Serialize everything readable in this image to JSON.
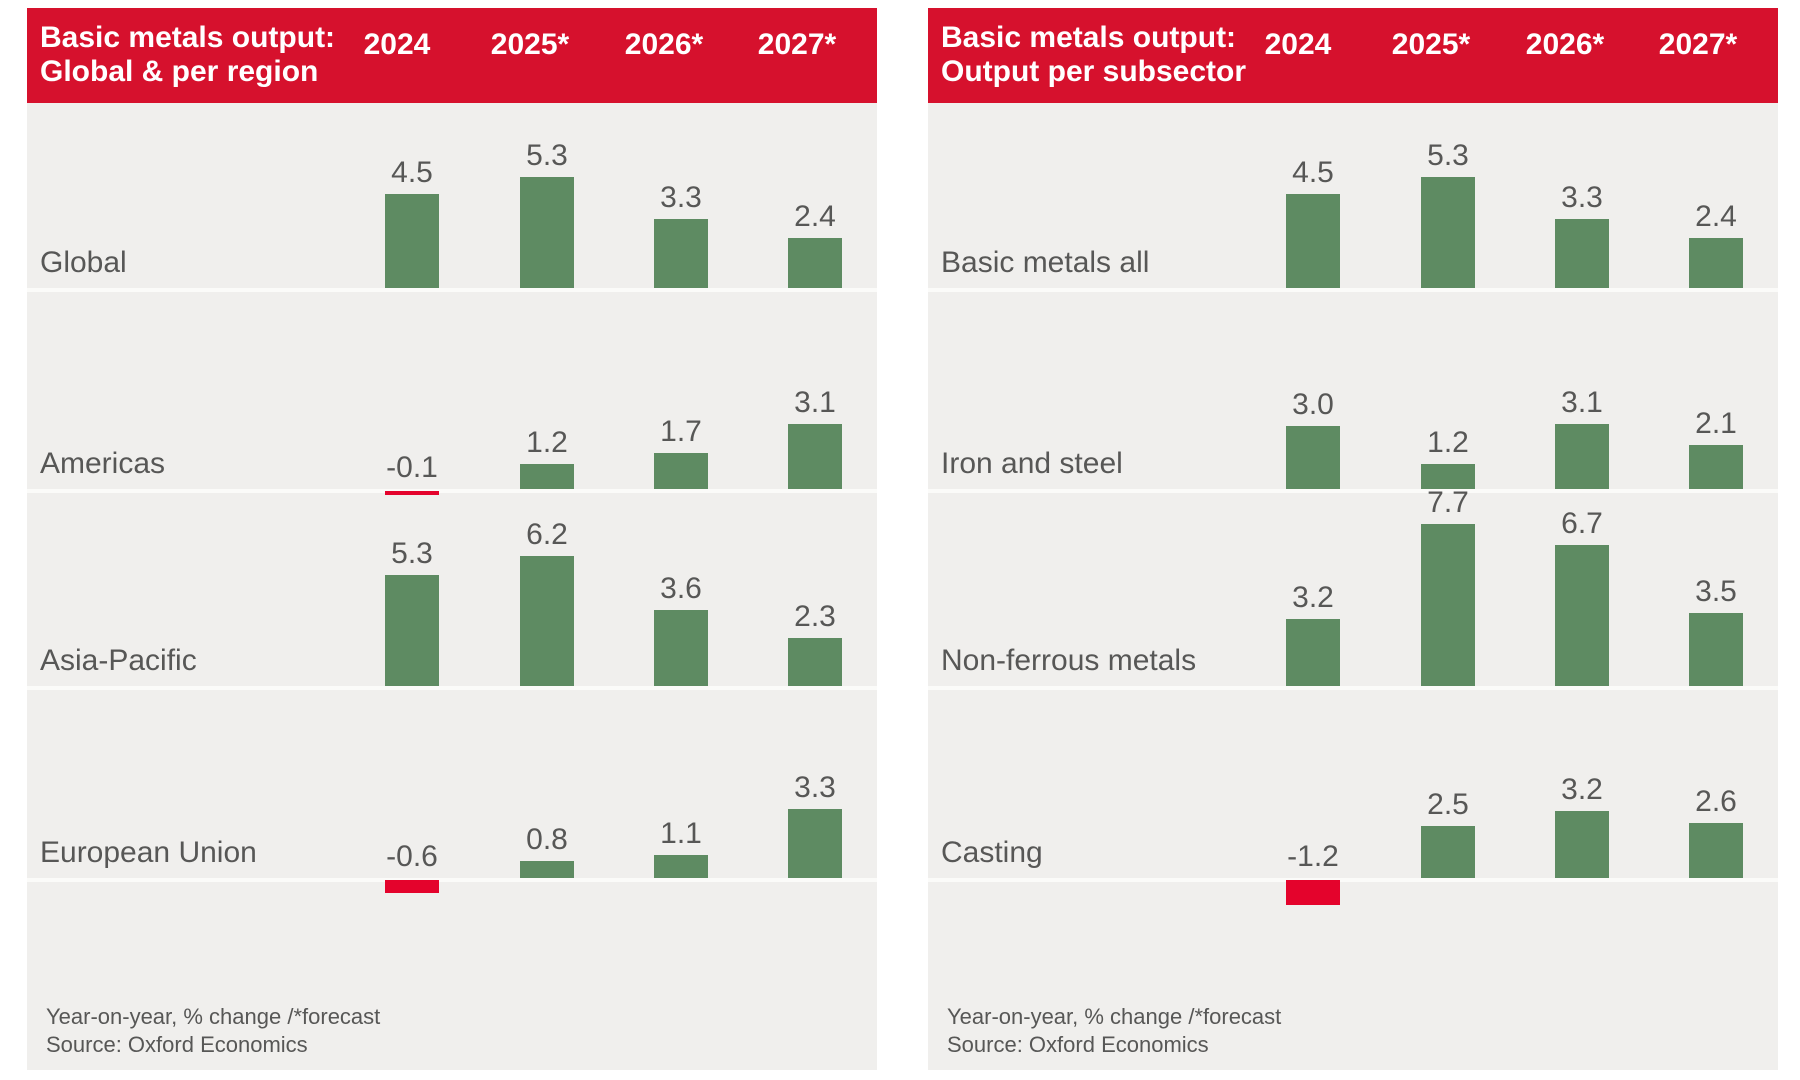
{
  "style": {
    "header_red": "#d6112d",
    "negative_bar_red": "#e4032c",
    "bar_green": "#5e8b62",
    "panel_background": "#f0efed",
    "separator_white": "#fbfbf9",
    "text_gray": "#575756",
    "header_text_white": "#ffffff"
  },
  "columns": [
    "2024",
    "2025*",
    "2026*",
    "2027*"
  ],
  "chart_data": [
    {
      "type": "bar",
      "title": "Basic metals output: Global & per region",
      "title_line1": "Basic metals output:",
      "title_line2": "Global & per region",
      "categories": [
        "2024",
        "2025*",
        "2026*",
        "2027*"
      ],
      "series": [
        {
          "name": "Global",
          "values": [
            4.5,
            5.3,
            3.3,
            2.4
          ]
        },
        {
          "name": "Americas",
          "values": [
            -0.1,
            1.2,
            1.7,
            3.1
          ]
        },
        {
          "name": "Asia-Pacific",
          "values": [
            5.3,
            6.2,
            3.6,
            2.3
          ]
        },
        {
          "name": "European Union",
          "values": [
            -0.6,
            0.8,
            1.1,
            3.3
          ]
        }
      ],
      "ylabel": "",
      "xlabel": "",
      "legend_position": "none",
      "grid": false,
      "note": "Year-on-year, % change /*forecast",
      "source": "Source: Oxford Economics"
    },
    {
      "type": "bar",
      "title": "Basic metals output: Output per subsector",
      "title_line1": "Basic metals output:",
      "title_line2": "Output per subsector",
      "categories": [
        "2024",
        "2025*",
        "2026*",
        "2027*"
      ],
      "series": [
        {
          "name": "Basic metals all",
          "values": [
            4.5,
            5.3,
            3.3,
            2.4
          ]
        },
        {
          "name": "Iron and steel",
          "values": [
            3.0,
            1.2,
            3.1,
            2.1
          ]
        },
        {
          "name": "Non-ferrous metals",
          "values": [
            3.2,
            7.7,
            6.7,
            3.5
          ]
        },
        {
          "name": "Casting",
          "values": [
            -1.2,
            2.5,
            3.2,
            2.6
          ]
        }
      ],
      "ylabel": "",
      "xlabel": "",
      "legend_position": "none",
      "grid": false,
      "note": "Year-on-year, % change /*forecast",
      "source": "Source: Oxford Economics"
    }
  ]
}
